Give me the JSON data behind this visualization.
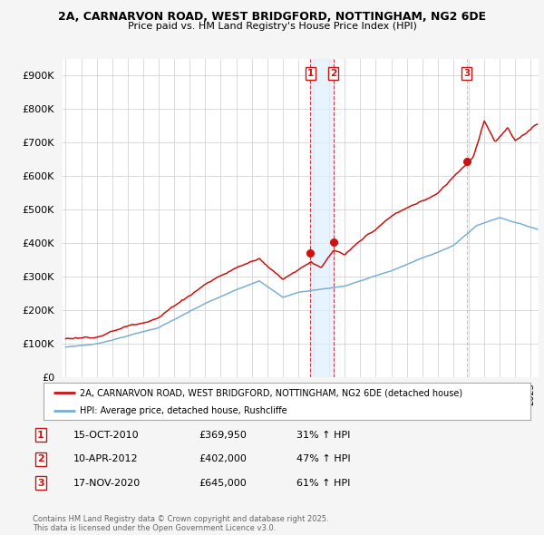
{
  "title_line1": "2A, CARNARVON ROAD, WEST BRIDGFORD, NOTTINGHAM, NG2 6DE",
  "title_line2": "Price paid vs. HM Land Registry's House Price Index (HPI)",
  "background_color": "#f5f5f5",
  "plot_bg_color": "#ffffff",
  "grid_color": "#cccccc",
  "red_color": "#cc1111",
  "blue_color": "#7ab0d4",
  "shade_color": "#ddeeff",
  "ylim": [
    0,
    950000
  ],
  "yticks": [
    0,
    100000,
    200000,
    300000,
    400000,
    500000,
    600000,
    700000,
    800000,
    900000
  ],
  "ytick_labels": [
    "£0",
    "£100K",
    "£200K",
    "£300K",
    "£400K",
    "£500K",
    "£600K",
    "£700K",
    "£800K",
    "£900K"
  ],
  "xlim_start": 1994.8,
  "xlim_end": 2025.5,
  "transactions": [
    {
      "year": 2010.79,
      "price": 369950,
      "label": "1"
    },
    {
      "year": 2012.27,
      "price": 402000,
      "label": "2"
    },
    {
      "year": 2020.88,
      "price": 645000,
      "label": "3"
    }
  ],
  "legend_line1": "2A, CARNARVON ROAD, WEST BRIDGFORD, NOTTINGHAM, NG2 6DE (detached house)",
  "legend_line2": "HPI: Average price, detached house, Rushcliffe",
  "table_rows": [
    {
      "num": "1",
      "date": "15-OCT-2010",
      "price": "£369,950",
      "pct": "31% ↑ HPI"
    },
    {
      "num": "2",
      "date": "10-APR-2012",
      "price": "£402,000",
      "pct": "47% ↑ HPI"
    },
    {
      "num": "3",
      "date": "17-NOV-2020",
      "price": "£645,000",
      "pct": "61% ↑ HPI"
    }
  ],
  "footer": "Contains HM Land Registry data © Crown copyright and database right 2025.\nThis data is licensed under the Open Government Licence v3.0."
}
